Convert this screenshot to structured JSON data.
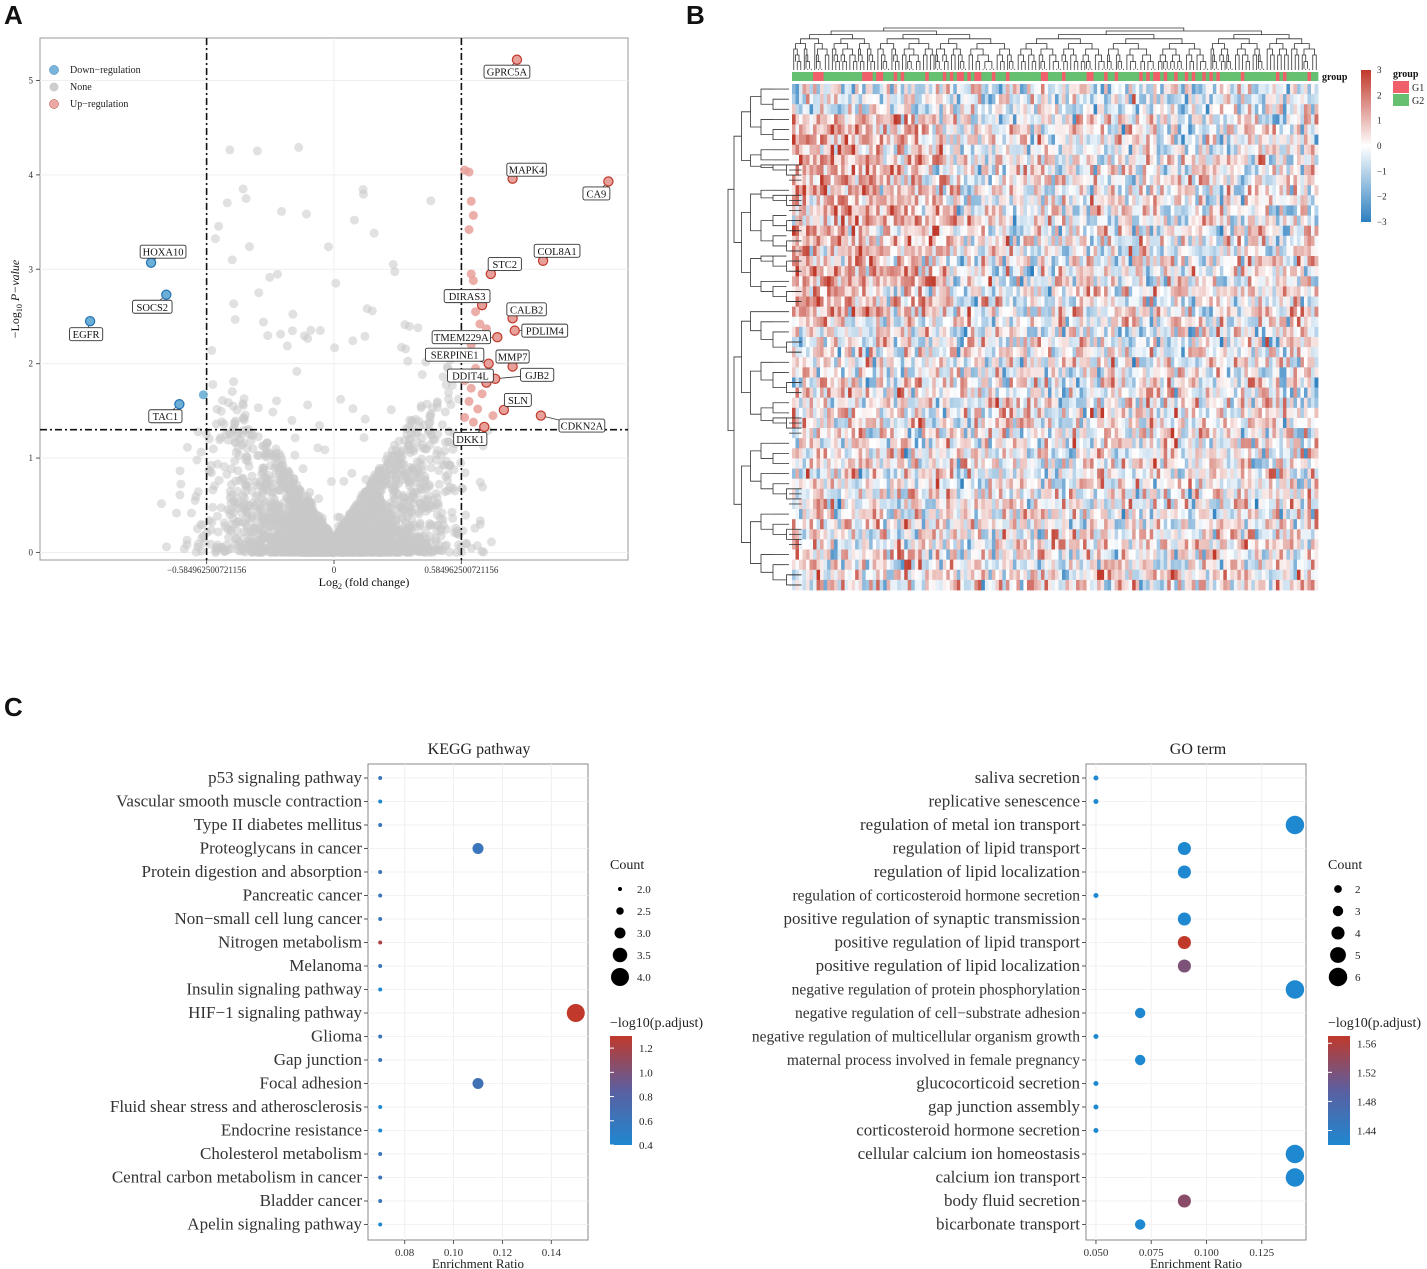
{
  "panels": {
    "a": "A",
    "b": "B",
    "c": "C"
  },
  "colors": {
    "down": "#6BAED6",
    "down_edge": "#2171B5",
    "none": "#C8C8C8",
    "up": "#E7A09A",
    "up_edge": "#C0392B",
    "heat_high": "#C0392B",
    "heat_mid": "#FFFFFF",
    "heat_low": "#2C7FC0",
    "g1": "#F0606A",
    "g2": "#66C071",
    "scale_high": "#C0392B",
    "scale_mid": "#5B5FA0",
    "scale_low": "#1E88D0"
  },
  "chart_data": [
    {
      "type": "scatter",
      "id": "volcano",
      "title": "",
      "xlabel_main": "Log",
      "xlabel_sub": "2",
      "xlabel_rest": " (fold change)",
      "ylabel_prefix": "−Log",
      "ylabel_sub": "10",
      "ylabel_rest": " P−value",
      "xlim": [
        -1.35,
        1.35
      ],
      "ylim": [
        -0.08,
        5.45
      ],
      "x_ticks": [
        -0.584962500721156,
        0,
        0.584962500721156
      ],
      "x_tick_labels": [
        "−0.584962500721156",
        "0",
        "0.584962500721156"
      ],
      "y_ticks": [
        0,
        1,
        2,
        3,
        4,
        5
      ],
      "y_tick_labels": [
        "0",
        "1",
        "2",
        "3",
        "4",
        "5"
      ],
      "threshold_x": [
        -0.584962500721156,
        0.584962500721156
      ],
      "threshold_y": 1.3,
      "legend": [
        "Down−regulation",
        "None",
        "Up−regulation"
      ],
      "down_points": [
        [
          -1.12,
          2.45
        ],
        [
          -0.84,
          3.07
        ],
        [
          -0.77,
          2.73
        ],
        [
          -0.71,
          1.57
        ],
        [
          -0.6,
          1.67
        ]
      ],
      "up_points": [
        [
          0.6,
          4.05
        ],
        [
          0.62,
          4.03
        ],
        [
          0.63,
          3.72
        ],
        [
          0.64,
          3.57
        ],
        [
          0.62,
          3.42
        ],
        [
          0.63,
          2.95
        ],
        [
          0.64,
          2.88
        ],
        [
          0.66,
          2.75
        ],
        [
          0.68,
          2.63
        ],
        [
          0.65,
          2.55
        ],
        [
          0.67,
          2.42
        ],
        [
          0.7,
          2.37
        ],
        [
          0.63,
          2.2
        ],
        [
          0.66,
          2.12
        ],
        [
          0.71,
          2.0
        ],
        [
          0.65,
          1.95
        ],
        [
          0.6,
          1.82
        ],
        [
          0.63,
          1.74
        ],
        [
          0.68,
          1.68
        ],
        [
          0.62,
          1.6
        ],
        [
          0.66,
          1.52
        ],
        [
          0.6,
          1.43
        ],
        [
          0.64,
          1.38
        ],
        [
          0.73,
          1.45
        ],
        [
          0.69,
          1.33
        ]
      ],
      "labeled_up": [
        {
          "gene": "GPRC5A",
          "x": 0.84,
          "y": 5.22
        },
        {
          "gene": "MAPK4",
          "x": 0.82,
          "y": 3.96
        },
        {
          "gene": "CA9",
          "x": 1.26,
          "y": 3.93
        },
        {
          "gene": "COL8A1",
          "x": 0.96,
          "y": 3.09
        },
        {
          "gene": "STC2",
          "x": 0.72,
          "y": 2.95
        },
        {
          "gene": "DIRAS3",
          "x": 0.68,
          "y": 2.62
        },
        {
          "gene": "CALB2",
          "x": 0.82,
          "y": 2.48
        },
        {
          "gene": "PDLIM4",
          "x": 0.83,
          "y": 2.35
        },
        {
          "gene": "TMEM229A",
          "x": 0.75,
          "y": 2.28
        },
        {
          "gene": "SERPINE1",
          "x": 0.71,
          "y": 2.0
        },
        {
          "gene": "MMP7",
          "x": 0.82,
          "y": 1.97
        },
        {
          "gene": "GJB2",
          "x": 0.74,
          "y": 1.84
        },
        {
          "gene": "DDIT4L",
          "x": 0.7,
          "y": 1.8
        },
        {
          "gene": "SLN",
          "x": 0.78,
          "y": 1.51
        },
        {
          "gene": "CDKN2A",
          "x": 0.95,
          "y": 1.45
        },
        {
          "gene": "DKK1",
          "x": 0.69,
          "y": 1.33
        }
      ],
      "labeled_down": [
        {
          "gene": "HOXA10",
          "x": -0.84,
          "y": 3.07
        },
        {
          "gene": "SOCS2",
          "x": -0.77,
          "y": 2.73
        },
        {
          "gene": "EGFR",
          "x": -1.12,
          "y": 2.45
        },
        {
          "gene": "TAC1",
          "x": -0.71,
          "y": 1.57
        }
      ]
    },
    {
      "type": "heatmap",
      "id": "heatmap",
      "rows": 50,
      "columns": 150,
      "value_range": [
        -3,
        3
      ],
      "colorbar_ticks": [
        "3",
        "2",
        "1",
        "0",
        "−1",
        "−2",
        "−3"
      ],
      "annotation_label": "group",
      "legend_title": "group",
      "legend_items": [
        "G1",
        "G2"
      ]
    },
    {
      "type": "scatter",
      "id": "kegg",
      "title": "KEGG pathway",
      "xlabel": "Enrichment Ratio",
      "xlim": [
        0.065,
        0.155
      ],
      "x_ticks": [
        0.08,
        0.1,
        0.12,
        0.14
      ],
      "x_tick_labels": [
        "0.08",
        "0.10",
        "0.12",
        "0.14"
      ],
      "terms": [
        "p53 signaling pathway",
        "Vascular smooth muscle contraction",
        "Type II diabetes mellitus",
        "Proteoglycans in cancer",
        "Protein digestion and absorption",
        "Pancreatic cancer",
        "Non−small cell lung cancer",
        "Nitrogen metabolism",
        "Melanoma",
        "Insulin signaling pathway",
        "HIF−1 signaling pathway",
        "Glioma",
        "Gap junction",
        "Focal adhesion",
        "Fluid shear stress and atherosclerosis",
        "Endocrine resistance",
        "Cholesterol metabolism",
        "Central carbon metabolism in cancer",
        "Bladder cancer",
        "Apelin signaling pathway"
      ],
      "ratio": [
        0.07,
        0.07,
        0.07,
        0.11,
        0.07,
        0.07,
        0.07,
        0.07,
        0.07,
        0.07,
        0.15,
        0.07,
        0.07,
        0.11,
        0.07,
        0.07,
        0.07,
        0.07,
        0.07,
        0.07
      ],
      "count": [
        2,
        2,
        2,
        3,
        2,
        2,
        2,
        2,
        2,
        2,
        4,
        2,
        2,
        3,
        2,
        2,
        2,
        2,
        2,
        2
      ],
      "neglog10_padj": [
        0.6,
        0.4,
        0.6,
        0.6,
        0.6,
        0.6,
        0.6,
        1.2,
        0.6,
        0.4,
        1.3,
        0.6,
        0.6,
        0.65,
        0.4,
        0.4,
        0.6,
        0.6,
        0.6,
        0.4
      ],
      "size_legend_title": "Count",
      "size_legend": [
        2.0,
        2.5,
        3.0,
        3.5,
        4.0
      ],
      "size_legend_labels": [
        "2.0",
        "2.5",
        "3.0",
        "3.5",
        "4.0"
      ],
      "color_legend_title": "−log10(p.adjust)",
      "color_range": [
        0.4,
        1.3
      ],
      "color_ticks": [
        1.2,
        1.0,
        0.8,
        0.6,
        0.4
      ],
      "color_tick_labels": [
        "1.2",
        "1.0",
        "0.8",
        "0.6",
        "0.4"
      ]
    },
    {
      "type": "scatter",
      "id": "go",
      "title": "GO term",
      "xlabel": "Enrichment Ratio",
      "xlim": [
        0.0455,
        0.145
      ],
      "x_ticks": [
        0.05,
        0.075,
        0.1,
        0.125
      ],
      "x_tick_labels": [
        "0.050",
        "0.075",
        "0.100",
        "0.125"
      ],
      "terms": [
        "saliva secretion",
        "replicative senescence",
        "regulation of metal ion transport",
        "regulation of lipid transport",
        "regulation of lipid localization",
        "regulation of corticosteroid hormone secretion",
        "positive regulation of synaptic transmission",
        "positive regulation of lipid transport",
        "positive regulation of lipid localization",
        "negative regulation of protein phosphorylation",
        "negative regulation of cell−substrate adhesion",
        "negative regulation of multicellular organism growth",
        "maternal process involved in female pregnancy",
        "glucocorticoid secretion",
        "gap junction assembly",
        "corticosteroid hormone secretion",
        "cellular calcium ion homeostasis",
        "calcium ion transport",
        "body fluid secretion",
        "bicarbonate transport"
      ],
      "ratio": [
        0.05,
        0.05,
        0.14,
        0.09,
        0.09,
        0.05,
        0.09,
        0.09,
        0.09,
        0.14,
        0.07,
        0.05,
        0.07,
        0.05,
        0.05,
        0.05,
        0.14,
        0.14,
        0.09,
        0.07
      ],
      "count": [
        1,
        1,
        6,
        4,
        4,
        1,
        4,
        4,
        4,
        6,
        3,
        1,
        3,
        1,
        1,
        1,
        6,
        6,
        4,
        3
      ],
      "neglog10_padj": [
        1.42,
        1.42,
        1.42,
        1.42,
        1.42,
        1.42,
        1.42,
        1.57,
        1.52,
        1.42,
        1.42,
        1.42,
        1.42,
        1.42,
        1.42,
        1.42,
        1.42,
        1.42,
        1.53,
        1.42
      ],
      "size_legend_title": "Count",
      "size_legend": [
        2,
        3,
        4,
        5,
        6
      ],
      "size_legend_labels": [
        "2",
        "3",
        "4",
        "5",
        "6"
      ],
      "color_legend_title": "−log10(p.adjust)",
      "color_range": [
        1.42,
        1.57
      ],
      "color_ticks": [
        1.56,
        1.52,
        1.48,
        1.44
      ],
      "color_tick_labels": [
        "1.56",
        "1.52",
        "1.48",
        "1.44"
      ]
    }
  ]
}
